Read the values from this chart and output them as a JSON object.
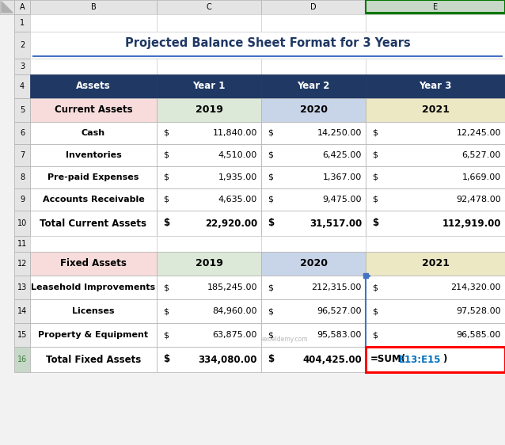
{
  "title": "Projected Balance Sheet Format for 3 Years",
  "col_header_bg": "#1F3864",
  "col_header_fg": "#FFFFFF",
  "row_header_bg_current": "#F8DCDC",
  "row_header_bg_fixed": "#F8DCDC",
  "year1_bg": "#DCE8D8",
  "year2_bg": "#C8D4E8",
  "year3_bg": "#EDE8C4",
  "data_row_bg": "#FFFFFF",
  "excel_bg": "#F2F2F2",
  "col_header_row_bg": "#E4E4E4",
  "col_e_header_bg": "#C8D8C8",
  "row_num_bg": "#E4E4E4",
  "row_16_num_bg": "#C8D8C8",
  "header_row": [
    "Assets",
    "Year 1",
    "Year 2",
    "Year 3"
  ],
  "current_assets_header": [
    "Current Assets",
    "2019",
    "2020",
    "2021"
  ],
  "current_rows": [
    [
      "Cash",
      "11,840.00",
      "14,250.00",
      "12,245.00"
    ],
    [
      "Inventories",
      "4,510.00",
      "6,425.00",
      "6,527.00"
    ],
    [
      "Pre-paid Expenses",
      "1,935.00",
      "1,367.00",
      "1,669.00"
    ],
    [
      "Accounts Receivable",
      "4,635.00",
      "9,475.00",
      "92,478.00"
    ]
  ],
  "current_total": [
    "Total Current Assets",
    "22,920.00",
    "31,517.00",
    "112,919.00"
  ],
  "fixed_header": [
    "Fixed Assets",
    "2019",
    "2020",
    "2021"
  ],
  "fixed_rows": [
    [
      "Leasehold Improvements",
      "185,245.00",
      "212,315.00",
      "214,320.00"
    ],
    [
      "Licenses",
      "84,960.00",
      "96,527.00",
      "97,528.00"
    ],
    [
      "Property & Equipment",
      "63,875.00",
      "95,583.00",
      "96,585.00"
    ]
  ],
  "fixed_total": [
    "Total Fixed Assets",
    "334,080.00",
    "404,425.00",
    "=SUM(E13:E15)"
  ],
  "formula_cell_border": "#FF0000",
  "formula_black": "=SUM(",
  "formula_blue": "E13:E15",
  "formula_close": ")"
}
